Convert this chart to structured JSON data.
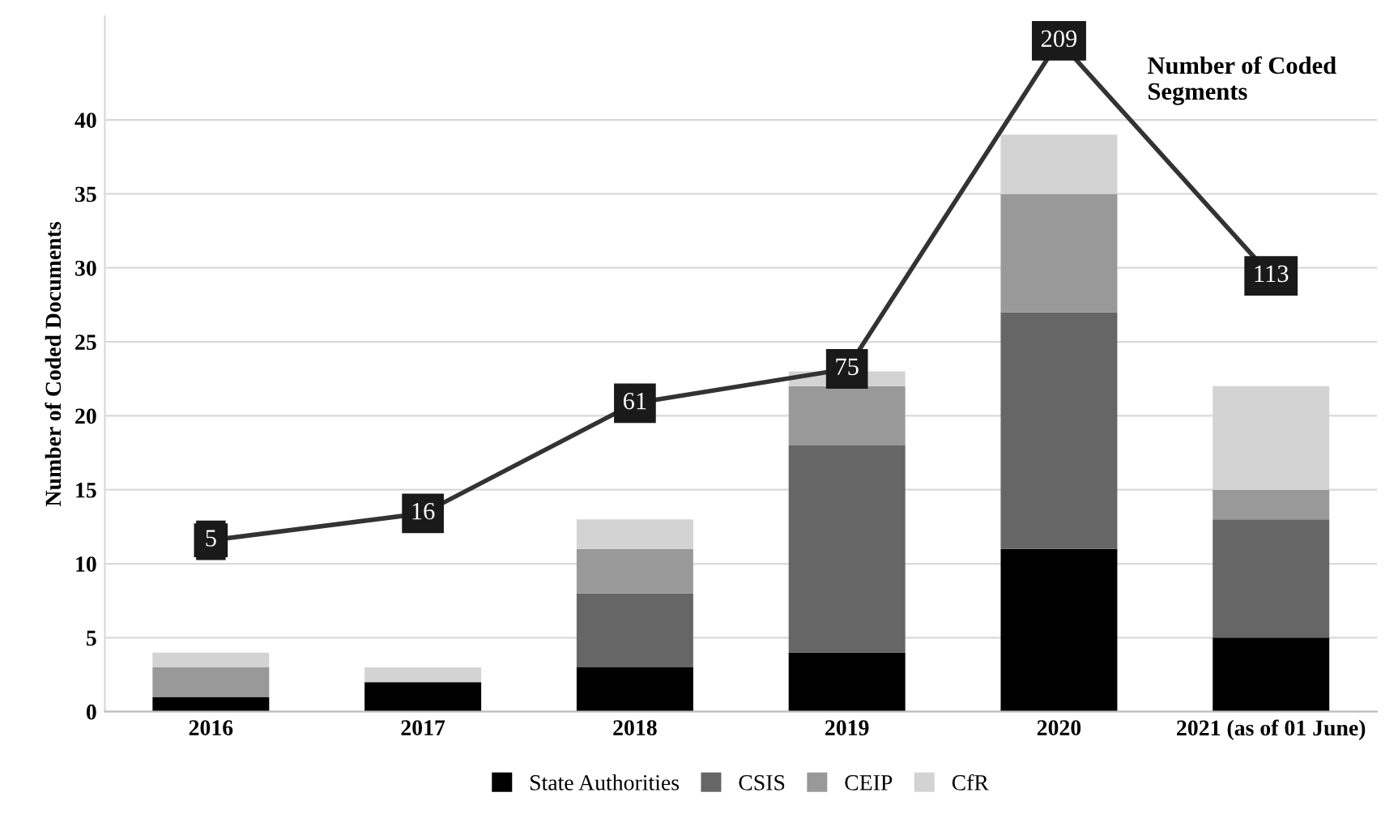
{
  "chart_data": {
    "type": "bar",
    "stacked": true,
    "categories": [
      "2016",
      "2017",
      "2018",
      "2019",
      "2020",
      "2021 (as of 01 June)"
    ],
    "ylabel": "Number of Coded Documents",
    "ylim": [
      0,
      47
    ],
    "yticks": [
      0,
      5,
      10,
      15,
      20,
      25,
      30,
      35,
      40
    ],
    "y2lim": [
      -65,
      219
    ],
    "grid": "y",
    "legend": "bottom",
    "series": [
      {
        "name": "State Authorities",
        "color": "#000000",
        "values": [
          1,
          2,
          3,
          4,
          11,
          5
        ]
      },
      {
        "name": "CSIS",
        "color": "#666666",
        "values": [
          0,
          0,
          5,
          14,
          16,
          8
        ]
      },
      {
        "name": "CEIP",
        "color": "#999999",
        "values": [
          2,
          0,
          3,
          4,
          8,
          2
        ]
      },
      {
        "name": "CfR",
        "color": "#d3d3d3",
        "values": [
          1,
          1,
          2,
          1,
          4,
          7
        ]
      },
      {
        "name": "Number of Coded Segments",
        "type": "line",
        "axis": "y2",
        "color": "#333333",
        "marker": "square",
        "data_labels": true,
        "values": [
          5,
          16,
          61,
          75,
          209,
          113
        ]
      }
    ]
  }
}
